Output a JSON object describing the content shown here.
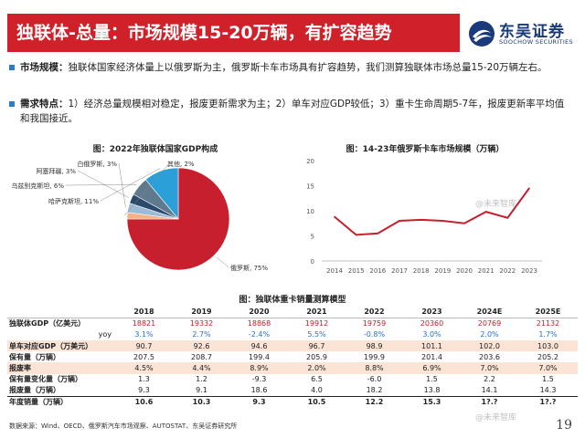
{
  "title": "独联体-总量：市场规模15-20万辆，有扩容趋势",
  "logo": {
    "cn": "东吴证券",
    "en": "SOOCHOW SECURITIES"
  },
  "bullets": [
    {
      "label": "市场规模：",
      "text": "独联体国家经济体量上以俄罗斯为主，俄罗斯卡车市场具有扩容趋势，我们测算独联体市场总量15-20万辆左右。"
    },
    {
      "label": "需求特点：",
      "text": "1）经济总量规模相对稳定，报废更新需求为主；2）单车对应GDP较低；3）重卡生命周期5-7年，报废更新率平均值和我国接近。"
    }
  ],
  "pie": {
    "title": "图：2022年独联体国家GDP构成",
    "slices": [
      {
        "label": "俄罗斯, 75%",
        "value": 75,
        "color": "#c81f2e"
      },
      {
        "label": "哈萨克斯坦, 11%",
        "value": 11,
        "color": "#2a9fd8"
      },
      {
        "label": "乌兹别克斯坦, 6%",
        "value": 6,
        "color": "#5f7a8c"
      },
      {
        "label": "阿塞拜疆, 3%",
        "value": 3,
        "color": "#2b4a6b"
      },
      {
        "label": "白俄罗斯, 3%",
        "value": 3,
        "color": "#9bbad6"
      },
      {
        "label": "其他, 2%",
        "value": 2,
        "color": "#f4b183"
      }
    ]
  },
  "chart_data": {
    "type": "line",
    "title": "图：14-23年俄罗斯卡车市场规模（万辆）",
    "x": [
      "2014",
      "2015",
      "2016",
      "2017",
      "2018",
      "2019",
      "2020",
      "2021",
      "2022",
      "2023"
    ],
    "values": [
      8.8,
      5.2,
      5.5,
      8.0,
      8.2,
      8.0,
      7.5,
      9.8,
      8.6,
      14.5
    ],
    "ylim": [
      0,
      20
    ],
    "yticks": [
      "0",
      "5",
      "10",
      "15",
      "20"
    ],
    "color": "#c81f2e",
    "grid": false
  },
  "table": {
    "title": "图：独联体重卡销量测算模型",
    "headers": [
      "",
      "2018",
      "2019",
      "2020",
      "2021",
      "2022",
      "2023",
      "2024E",
      "2025E"
    ],
    "rows": [
      {
        "label": "独联体GDP（亿美元）",
        "cls": "red",
        "cells": [
          "18821",
          "19332",
          "18868",
          "19912",
          "19759",
          "20360",
          "20769",
          "21132"
        ]
      },
      {
        "label": "yoy",
        "cls": "pct plain",
        "cells": [
          "3.1%",
          "2.7%",
          "-2.4%",
          "5.5%",
          "-0.8%",
          "3.0%",
          "2.0%",
          "1.7%"
        ]
      },
      {
        "label": "单车对应GDP（万美元）",
        "cls": "shade",
        "cells": [
          "90.7",
          "92.6",
          "94.6",
          "96.7",
          "98.9",
          "101.1",
          "102.0",
          "103.0"
        ]
      },
      {
        "label": "保有量（万辆）",
        "cls": "",
        "cells": [
          "207.5",
          "208.7",
          "199.4",
          "205.9",
          "199.9",
          "201.4",
          "203.6",
          "205.2"
        ]
      },
      {
        "label": "报废率",
        "cls": "shade",
        "cells": [
          "4.5%",
          "4.4%",
          "8.9%",
          "2.0%",
          "8.8%",
          "6.9%",
          "7.0%",
          "7.0%"
        ]
      },
      {
        "label": "保有量变化量（万辆）",
        "cls": "",
        "cells": [
          "1.3",
          "1.2",
          "-9.3",
          "6.5",
          "-6.0",
          "1.5",
          "2.2",
          "1.5"
        ]
      },
      {
        "label": "报废量（万辆）",
        "cls": "",
        "cells": [
          "9.3",
          "9.1",
          "18.6",
          "4.0",
          "18.2",
          "13.8",
          "14.1",
          "14.3"
        ]
      },
      {
        "label": "年度销量（万辆）",
        "cls": "bot",
        "cells": [
          "10.6",
          "10.3",
          "9.3",
          "10.5",
          "12.2",
          "15.3",
          "1?.?",
          "1?.?"
        ]
      }
    ]
  },
  "source": "数据来源：Wind、OECD、俄罗斯汽车市场观察、AUTOSTAT、东吴证券研究所",
  "page": "19",
  "watermark": "@未来智库"
}
